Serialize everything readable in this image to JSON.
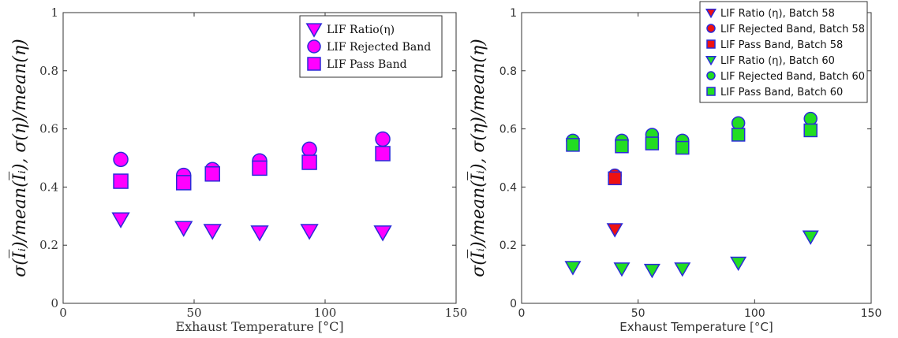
{
  "chart_data": [
    {
      "type": "scatter",
      "xlabel": "Exhaust Temperature [°C]",
      "ylabel": "σ(I̅ᵢ)/mean(I̅ᵢ), σ(η)/mean(η)",
      "xlim": [
        0,
        150
      ],
      "ylim": [
        0,
        1
      ],
      "xticks": [
        0,
        50,
        100,
        150
      ],
      "yticks": [
        0,
        0.2,
        0.4,
        0.6,
        0.8,
        1
      ],
      "ytick_labels": [
        "0",
        "0.2",
        "0.4",
        "0.6",
        "0.8",
        "1"
      ],
      "xtick_labels": [
        "0",
        "50",
        "100",
        "150"
      ],
      "grid": false,
      "legend_position": "top-right",
      "series": [
        {
          "name": "LIF Ratio(η)",
          "marker": "triangle-down",
          "color": "#ff00ff",
          "edge": "#2a2ad9",
          "points": [
            [
              22,
              0.29
            ],
            [
              46,
              0.26
            ],
            [
              57,
              0.25
            ],
            [
              75,
              0.245
            ],
            [
              94,
              0.25
            ],
            [
              122,
              0.245
            ]
          ]
        },
        {
          "name": "LIF Rejected Band",
          "marker": "circle",
          "color": "#ff00ff",
          "edge": "#2a2ad9",
          "points": [
            [
              22,
              0.495
            ],
            [
              46,
              0.44
            ],
            [
              57,
              0.46
            ],
            [
              75,
              0.49
            ],
            [
              94,
              0.53
            ],
            [
              122,
              0.565
            ]
          ]
        },
        {
          "name": "LIF Pass Band",
          "marker": "square",
          "color": "#ff00ff",
          "edge": "#2a2ad9",
          "points": [
            [
              22,
              0.42
            ],
            [
              46,
              0.415
            ],
            [
              57,
              0.445
            ],
            [
              75,
              0.465
            ],
            [
              94,
              0.485
            ],
            [
              122,
              0.515
            ]
          ]
        }
      ]
    },
    {
      "type": "scatter",
      "xlabel": "Exhaust Temperature [°C]",
      "ylabel": "σ(I̅ᵢ)/mean(I̅ᵢ), σ(η)/mean(η)",
      "xlim": [
        0,
        150
      ],
      "ylim": [
        0,
        1
      ],
      "xticks": [
        0,
        50,
        100,
        150
      ],
      "yticks": [
        0,
        0.2,
        0.4,
        0.6,
        0.8,
        1
      ],
      "ytick_labels": [
        "0",
        "0.2",
        "0.4",
        "0.6",
        "0.8",
        "1"
      ],
      "xtick_labels": [
        "0",
        "50",
        "100",
        "150"
      ],
      "grid": false,
      "legend_position": "top-right",
      "series": [
        {
          "name": "LIF Ratio (η), Batch 58",
          "marker": "triangle-down",
          "color": "#ee1111",
          "edge": "#2a2ad9",
          "points": [
            [
              40,
              0.255
            ]
          ]
        },
        {
          "name": "LIF Rejected Band, Batch 58",
          "marker": "circle",
          "color": "#ee1111",
          "edge": "#2a2ad9",
          "points": [
            [
              40,
              0.44
            ]
          ]
        },
        {
          "name": "LIF Pass Band, Batch 58",
          "marker": "square",
          "color": "#ee1111",
          "edge": "#2a2ad9",
          "points": [
            [
              40,
              0.43
            ]
          ]
        },
        {
          "name": "LIF Ratio (η), Batch 60",
          "marker": "triangle-down",
          "color": "#22dd22",
          "edge": "#2a2ad9",
          "points": [
            [
              22,
              0.125
            ],
            [
              43,
              0.12
            ],
            [
              56,
              0.115
            ],
            [
              69,
              0.12
            ],
            [
              93,
              0.14
            ],
            [
              124,
              0.23
            ]
          ]
        },
        {
          "name": "LIF Rejected Band, Batch 60",
          "marker": "circle",
          "color": "#22dd22",
          "edge": "#2a2ad9",
          "points": [
            [
              22,
              0.56
            ],
            [
              43,
              0.56
            ],
            [
              56,
              0.58
            ],
            [
              69,
              0.56
            ],
            [
              93,
              0.62
            ],
            [
              124,
              0.635
            ]
          ]
        },
        {
          "name": "LIF Pass Band, Batch 60",
          "marker": "square",
          "color": "#22dd22",
          "edge": "#2a2ad9",
          "points": [
            [
              22,
              0.545
            ],
            [
              43,
              0.54
            ],
            [
              56,
              0.55
            ],
            [
              69,
              0.535
            ],
            [
              93,
              0.58
            ],
            [
              124,
              0.595
            ]
          ]
        }
      ]
    }
  ]
}
